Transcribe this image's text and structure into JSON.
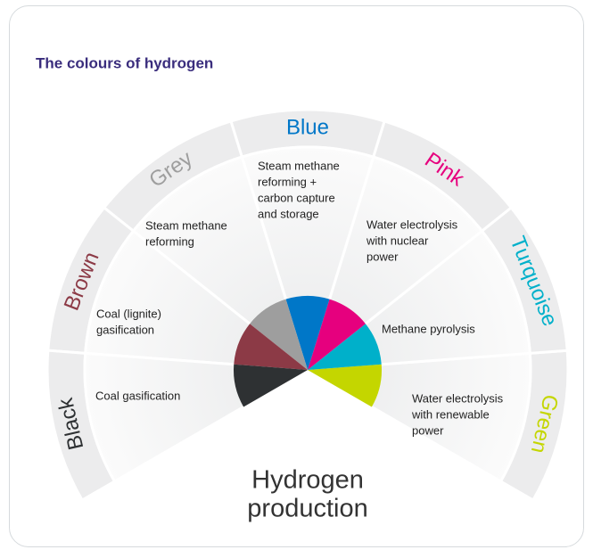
{
  "title": "The colours of hydrogen",
  "center_label": [
    "Hydrogen",
    "production"
  ],
  "segments": [
    {
      "name": "Green",
      "color": "#c4d600",
      "description": [
        "Water electrolysis",
        "with renewable",
        "power"
      ]
    },
    {
      "name": "Turquoise",
      "color": "#00b0ca",
      "description": [
        "Methane pyrolysis"
      ]
    },
    {
      "name": "Pink",
      "color": "#e6007e",
      "description": [
        "Water electrolysis",
        "with nuclear",
        "power"
      ]
    },
    {
      "name": "Blue",
      "color": "#0077c8",
      "description": [
        "Steam methane",
        "reforming +",
        "carbon capture",
        "and storage"
      ]
    },
    {
      "name": "Grey",
      "color": "#9e9e9e",
      "description": [
        "Steam methane",
        "reforming"
      ]
    },
    {
      "name": "Brown",
      "color": "#8c3a46",
      "description": [
        "Coal (lignite)",
        "gasification"
      ]
    },
    {
      "name": "Black",
      "color": "#2e3133",
      "description": [
        "Coal gasification"
      ]
    }
  ]
}
